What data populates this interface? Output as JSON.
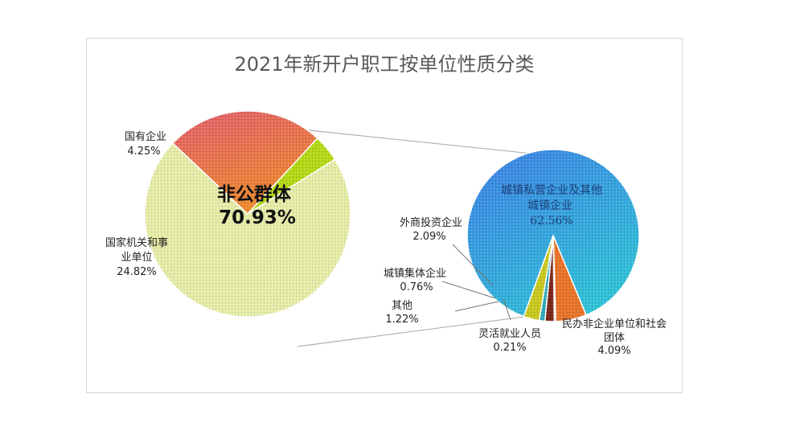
{
  "chart_data": [
    {
      "type": "pie",
      "title": "2021年新开户职工按单位性质分类",
      "slices": [
        {
          "label": "非公群体",
          "value": 70.93,
          "value_text": "70.93%",
          "color": "#e6eda8"
        },
        {
          "label": "国有企业",
          "value": 4.25,
          "value_text": "4.25%",
          "color": "#b4d916"
        },
        {
          "label": "国家机关和事业单位",
          "label_lines": [
            "国家机关和事",
            "业单位"
          ],
          "value": 24.82,
          "value_text": "24.82%",
          "color": "#e6765a"
        }
      ]
    },
    {
      "type": "pie",
      "exploded_from": "非公群体",
      "slices": [
        {
          "label": "城镇私营企业及其他城镇企业",
          "label_lines": [
            "城镇私营企业及其他",
            "城镇企业"
          ],
          "value": 62.56,
          "value_text": "62.56%",
          "color": "#4a9be6"
        },
        {
          "label": "民办非企业单位和社会团体",
          "label_lines": [
            "民办非企业单位和社会",
            "团体"
          ],
          "value": 4.09,
          "value_text": "4.09%",
          "color": "#e8742a"
        },
        {
          "label": "灵活就业人员",
          "value": 0.21,
          "value_text": "0.21%",
          "color": "#7a7a7a"
        },
        {
          "label": "其他",
          "value": 1.22,
          "value_text": "1.22%",
          "color": "#7a2418"
        },
        {
          "label": "城镇集体企业",
          "value": 0.76,
          "value_text": "0.76%",
          "color": "#2fa9b8"
        },
        {
          "label": "外商投资企业",
          "value": 2.09,
          "value_text": "2.09%",
          "color": "#c9c820"
        }
      ]
    }
  ]
}
